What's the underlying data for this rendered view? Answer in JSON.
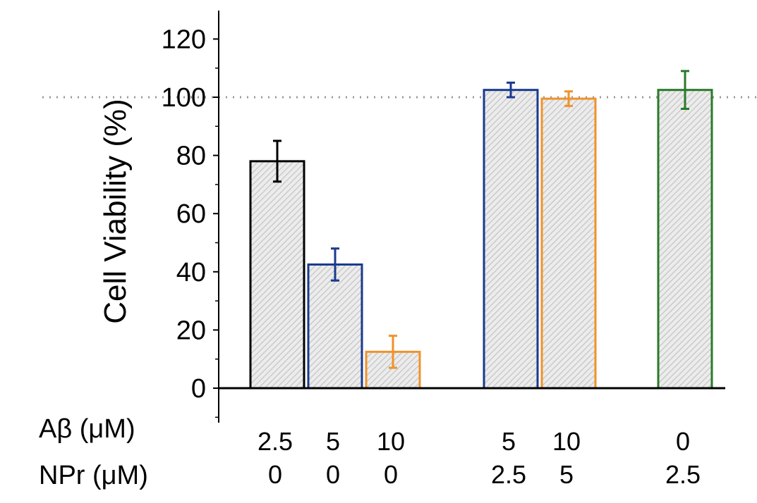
{
  "chart_data": {
    "type": "bar",
    "ylabel": "Cell Viability (%)",
    "ylim": [
      -12,
      130
    ],
    "yticks": [
      0,
      20,
      40,
      60,
      80,
      100,
      120
    ],
    "reference_line": 100,
    "grid": false,
    "hatch_fill": "#d9d9d9",
    "bars": [
      {
        "abeta": "2.5",
        "npr": "0",
        "value": 78,
        "error": 7,
        "color": "#000000"
      },
      {
        "abeta": "5",
        "npr": "0",
        "value": 42.5,
        "error": 5.5,
        "color": "#1a3a8f"
      },
      {
        "abeta": "10",
        "npr": "0",
        "value": 12.5,
        "error": 5.5,
        "color": "#f0922a"
      },
      {
        "abeta": "5",
        "npr": "2.5",
        "value": 102.5,
        "error": 2.5,
        "color": "#1a3a8f"
      },
      {
        "abeta": "10",
        "npr": "5",
        "value": 99.5,
        "error": 2.5,
        "color": "#f0922a"
      },
      {
        "abeta": "0",
        "npr": "2.5",
        "value": 102.5,
        "error": 6.5,
        "color": "#2a7a2a"
      }
    ],
    "row_labels": {
      "abeta": "Aβ (μM)",
      "npr": "NPr (μM)"
    }
  }
}
